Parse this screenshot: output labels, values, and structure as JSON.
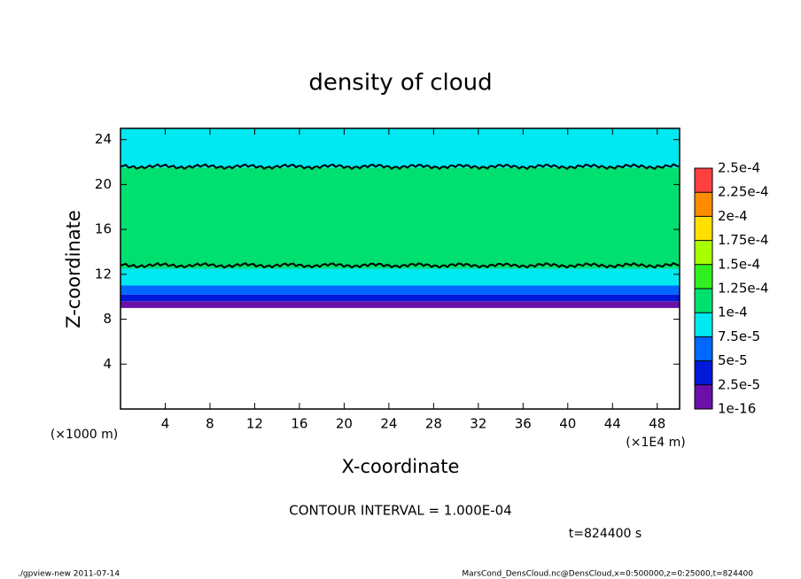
{
  "chart_data": {
    "type": "contour",
    "title": "density of cloud",
    "x_label": "X-coordinate",
    "y_label": "Z-coordinate",
    "x_unit": "(×1E4 m)",
    "y_unit": "(×1000 m)",
    "xlim": [
      0,
      50
    ],
    "xticks": [
      4,
      8,
      12,
      16,
      20,
      24,
      28,
      32,
      36,
      40,
      44,
      48
    ],
    "ylim": [
      0,
      25
    ],
    "yticks": [
      4,
      8,
      12,
      16,
      20,
      24
    ],
    "field": {
      "z": [
        9,
        9.6,
        10.2,
        11,
        12.5,
        21.5,
        25
      ],
      "values": [
        1e-05,
        3e-05,
        5.5e-05,
        8e-05,
        0.00011,
        8e-05
      ]
    },
    "contour_z": [
      12.8,
      21.6
    ],
    "colorbar": {
      "levels": [
        1e-16,
        {
          "value": 2.5e-05,
          "label": "2.5e-5"
        },
        {
          "value": 5e-05,
          "label": "5e-5"
        },
        {
          "value": 7.5e-05,
          "label": "7.5e-5"
        },
        {
          "value": 0.0001,
          "label": "1e-4"
        },
        {
          "value": 0.000125,
          "label": "1.25e-4"
        },
        {
          "value": 0.00015,
          "label": "1.5e-4"
        },
        {
          "value": 0.000175,
          "label": "1.75e-4"
        },
        {
          "value": 0.0002,
          "label": "2e-4"
        },
        {
          "value": 0.000225,
          "label": "2.25e-4"
        },
        {
          "value": 0.00025,
          "label": "2.5e-4"
        }
      ],
      "colors": [
        "#6a10a8",
        "#0018d8",
        "#0068ff",
        "#00e8f0",
        "#00e070",
        "#30f020",
        "#a8ff00",
        "#ffe000",
        "#ff8c00",
        "#ff4040"
      ]
    },
    "contour_interval": "CONTOUR INTERVAL = 1.000E-04",
    "time_label": "t=824400 s",
    "footer_left": "./gpview-new  2011-07-14",
    "footer_right": "MarsCond_DensCloud.nc@DensCloud,x=0:500000,z=0:25000,t=824400"
  }
}
